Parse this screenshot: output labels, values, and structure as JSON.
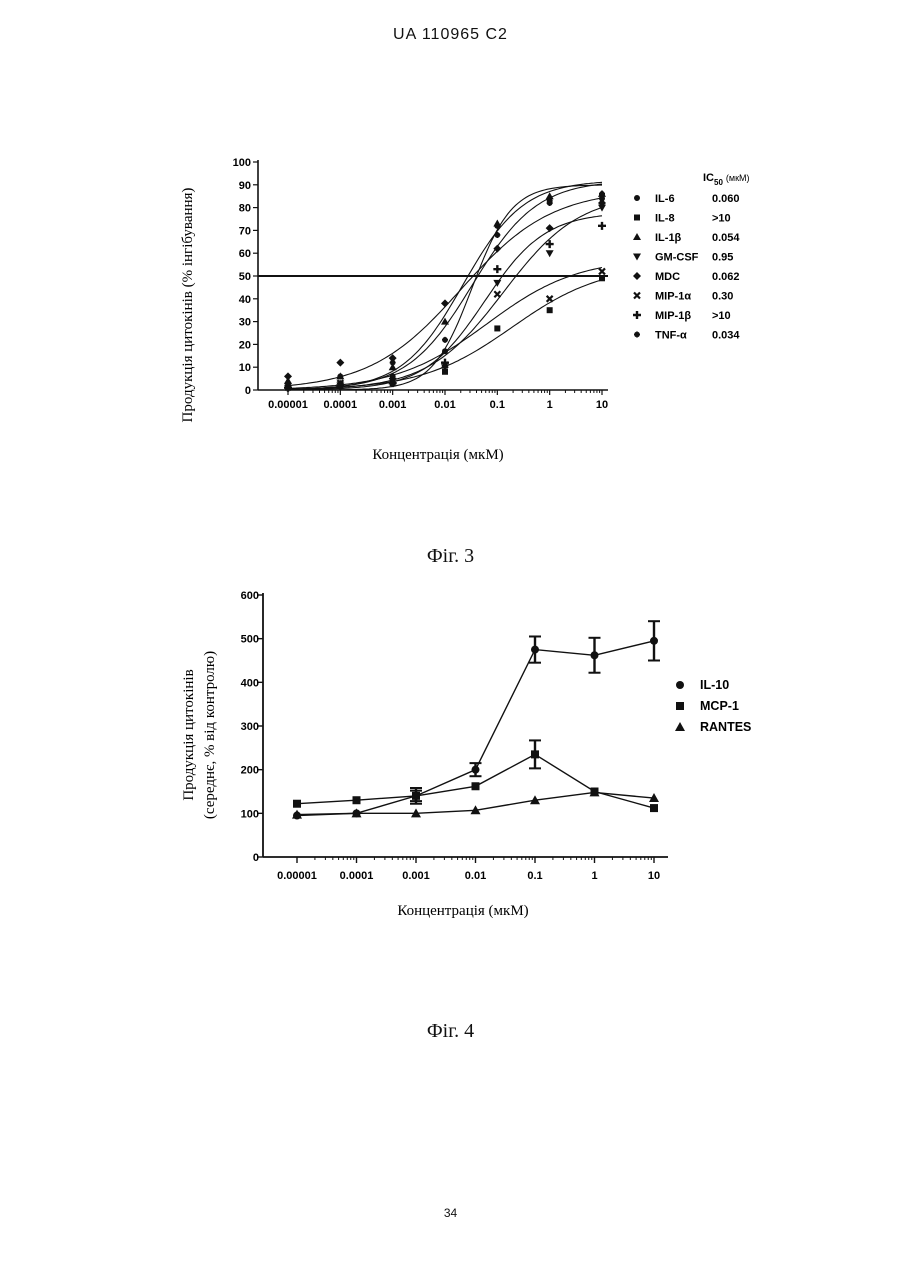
{
  "header": "UA   110965   C2",
  "page_number": "34",
  "figures": [
    {
      "caption": "Фіг. 3"
    },
    {
      "caption": "Фіг. 4"
    }
  ],
  "chart_data": [
    {
      "type": "line",
      "ylabel": "Продукція цитокінів (% інгібування)",
      "xlabel": "Концентрація (мкМ)",
      "x_scale": "log",
      "x": [
        1e-05,
        0.0001,
        0.001,
        0.01,
        0.1,
        1,
        10
      ],
      "x_tick_labels": [
        "0.00001",
        "0.0001",
        "0.001",
        "0.01",
        "0.1",
        "1",
        "10"
      ],
      "ylim": [
        0,
        100
      ],
      "y_ticks": [
        0,
        10,
        20,
        30,
        40,
        50,
        60,
        70,
        80,
        90,
        100
      ],
      "reference_line_y": 50,
      "legend_header": {
        "main": "IC",
        "sub": "50",
        "unit": "(мкМ)"
      },
      "series": [
        {
          "name": "IL-6",
          "ic50": "0.060",
          "marker": "circle",
          "values": [
            2,
            3,
            6,
            17,
            72,
            83,
            84
          ]
        },
        {
          "name": "IL-8",
          "ic50": ">10",
          "marker": "square",
          "values": [
            1,
            2,
            3,
            8,
            27,
            35,
            49
          ]
        },
        {
          "name": "IL-1β",
          "ic50": "0.054",
          "marker": "triangle",
          "values": [
            4,
            6,
            10,
            30,
            73,
            85,
            86
          ]
        },
        {
          "name": "GM-CSF",
          "ic50": "0.95",
          "marker": "tri-down",
          "values": [
            1,
            2,
            4,
            10,
            47,
            60,
            80
          ]
        },
        {
          "name": "MDC",
          "ic50": "0.062",
          "marker": "diamond",
          "values": [
            6,
            12,
            14,
            38,
            62,
            71,
            82
          ]
        },
        {
          "name": "MIP-1α",
          "ic50": "0.30",
          "marker": "x",
          "values": [
            2,
            3,
            4,
            11,
            42,
            40,
            52
          ]
        },
        {
          "name": "MIP-1β",
          "ic50": ">10",
          "marker": "plus",
          "values": [
            1,
            2,
            3,
            12,
            53,
            64,
            72
          ]
        },
        {
          "name": "TNF-α",
          "ic50": "0.034",
          "marker": "star",
          "values": [
            3,
            6,
            12,
            22,
            68,
            82,
            86
          ]
        }
      ]
    },
    {
      "type": "line",
      "ylabel": [
        "Продукція цитокінів",
        "(середнє, % від контролю)"
      ],
      "xlabel": "Концентрація (мкМ)",
      "x_scale": "log",
      "x": [
        1e-05,
        0.0001,
        0.001,
        0.01,
        0.1,
        1,
        10
      ],
      "x_tick_labels": [
        "0.00001",
        "0.0001",
        "0.001",
        "0.01",
        "0.1",
        "1",
        "10"
      ],
      "ylim": [
        0,
        600
      ],
      "y_ticks": [
        0,
        100,
        200,
        300,
        400,
        500,
        600
      ],
      "series": [
        {
          "name": "IL-10",
          "marker": "circle",
          "values": [
            95,
            100,
            140,
            200,
            475,
            462,
            495
          ],
          "errors": [
            0,
            0,
            18,
            15,
            30,
            40,
            45
          ]
        },
        {
          "name": "MCP-1",
          "marker": "square",
          "values": [
            122,
            130,
            140,
            162,
            235,
            150,
            112
          ],
          "errors": [
            0,
            0,
            12,
            0,
            32,
            0,
            0
          ]
        },
        {
          "name": "RANTES",
          "marker": "triangle",
          "values": [
            97,
            100,
            100,
            107,
            130,
            148,
            135
          ]
        }
      ]
    }
  ]
}
